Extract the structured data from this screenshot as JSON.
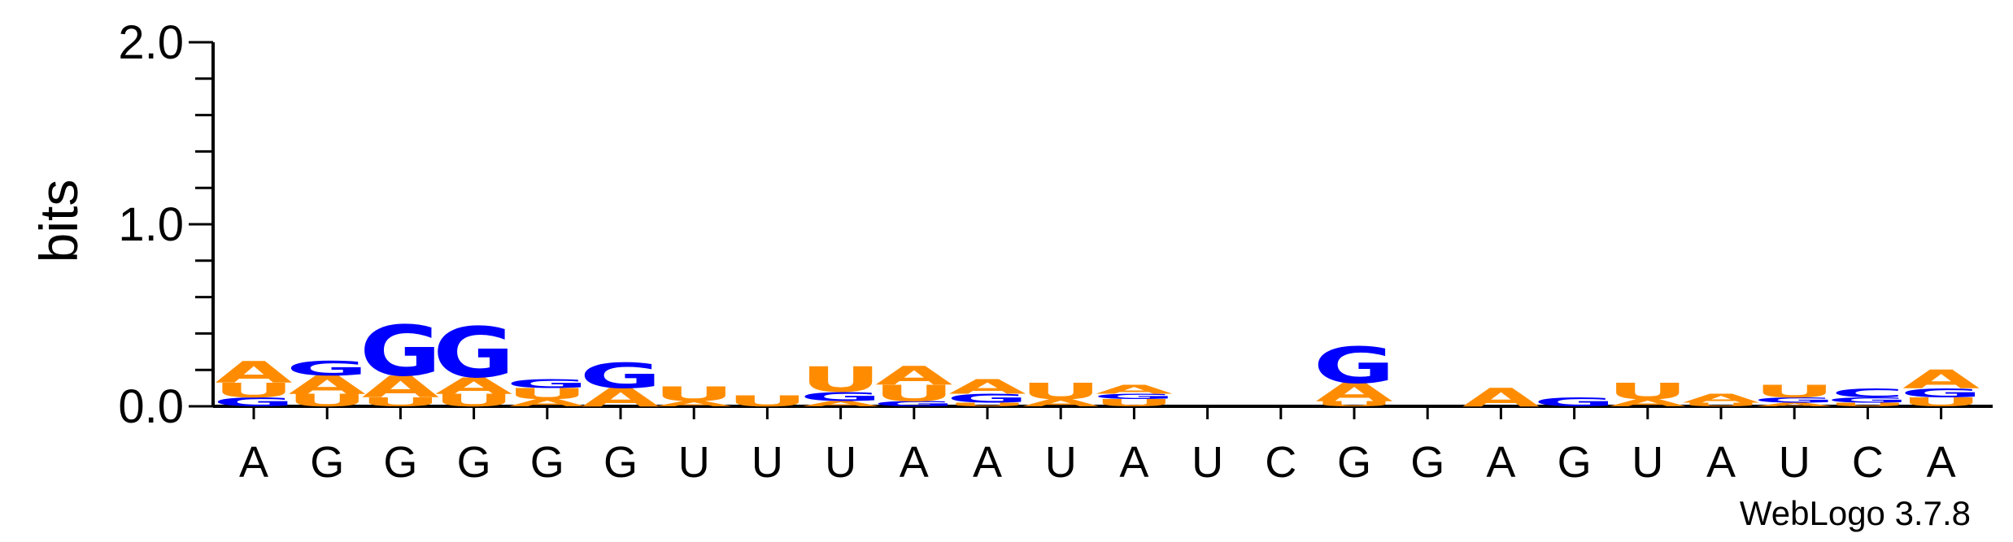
{
  "chart_data": {
    "type": "sequence-logo",
    "ylabel": "bits",
    "ylim": [
      0,
      2.0
    ],
    "yticks": [
      "0.0",
      "1.0",
      "2.0"
    ],
    "colors": {
      "A": "#ff8c00",
      "U": "#ff8c00",
      "G": "#0000ff",
      "C": "#0000ff"
    },
    "positions": [
      {
        "label": "A",
        "stack": [
          [
            "G",
            0.05
          ],
          [
            "U",
            0.08
          ],
          [
            "A",
            0.12
          ]
        ]
      },
      {
        "label": "G",
        "stack": [
          [
            "U",
            0.07
          ],
          [
            "A",
            0.1
          ],
          [
            "G",
            0.08
          ]
        ]
      },
      {
        "label": "G",
        "stack": [
          [
            "U",
            0.05
          ],
          [
            "A",
            0.12
          ],
          [
            "G",
            0.28
          ]
        ]
      },
      {
        "label": "G",
        "stack": [
          [
            "U",
            0.07
          ],
          [
            "A",
            0.09
          ],
          [
            "G",
            0.28
          ]
        ]
      },
      {
        "label": "G",
        "stack": [
          [
            "A",
            0.04
          ],
          [
            "U",
            0.06
          ],
          [
            "G",
            0.05
          ]
        ]
      },
      {
        "label": "G",
        "stack": [
          [
            "A",
            0.1
          ],
          [
            "G",
            0.14
          ]
        ]
      },
      {
        "label": "U",
        "stack": [
          [
            "A",
            0.03
          ],
          [
            "U",
            0.08
          ]
        ]
      },
      {
        "label": "U",
        "stack": [
          [
            "U",
            0.06
          ]
        ]
      },
      {
        "label": "U",
        "stack": [
          [
            "A",
            0.03
          ],
          [
            "G",
            0.05
          ],
          [
            "U",
            0.14
          ]
        ]
      },
      {
        "label": "A",
        "stack": [
          [
            "G",
            0.03
          ],
          [
            "U",
            0.09
          ],
          [
            "A",
            0.1
          ]
        ]
      },
      {
        "label": "A",
        "stack": [
          [
            "U",
            0.02
          ],
          [
            "G",
            0.05
          ],
          [
            "A",
            0.08
          ]
        ]
      },
      {
        "label": "U",
        "stack": [
          [
            "A",
            0.04
          ],
          [
            "U",
            0.09
          ]
        ]
      },
      {
        "label": "A",
        "stack": [
          [
            "U",
            0.04
          ],
          [
            "G",
            0.03
          ],
          [
            "A",
            0.05
          ]
        ]
      },
      {
        "label": "U",
        "stack": []
      },
      {
        "label": "C",
        "stack": []
      },
      {
        "label": "G",
        "stack": [
          [
            "U",
            0.03
          ],
          [
            "A",
            0.1
          ],
          [
            "G",
            0.2
          ]
        ]
      },
      {
        "label": "G",
        "stack": []
      },
      {
        "label": "A",
        "stack": [
          [
            "A",
            0.1
          ]
        ]
      },
      {
        "label": "G",
        "stack": [
          [
            "G",
            0.05
          ]
        ]
      },
      {
        "label": "U",
        "stack": [
          [
            "A",
            0.04
          ],
          [
            "U",
            0.09
          ]
        ]
      },
      {
        "label": "A",
        "stack": [
          [
            "U",
            0.02
          ],
          [
            "A",
            0.05
          ]
        ]
      },
      {
        "label": "U",
        "stack": [
          [
            "A",
            0.02
          ],
          [
            "G",
            0.03
          ],
          [
            "U",
            0.07
          ]
        ]
      },
      {
        "label": "C",
        "stack": [
          [
            "U",
            0.02
          ],
          [
            "G",
            0.03
          ],
          [
            "C",
            0.05
          ]
        ]
      },
      {
        "label": "A",
        "stack": [
          [
            "U",
            0.05
          ],
          [
            "G",
            0.05
          ],
          [
            "A",
            0.1
          ]
        ]
      }
    ]
  },
  "credit": "WebLogo 3.7.8"
}
